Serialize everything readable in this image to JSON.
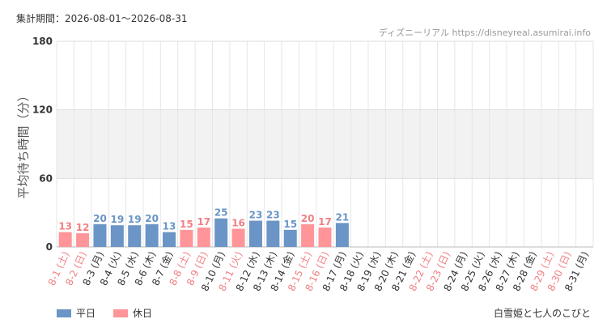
{
  "header": {
    "period": "集計期間：2026-08-01〜2026-08-31",
    "source": "ディズニーリアル https://disneyreal.asumirai.info"
  },
  "footer": {
    "subject": "白雪姫と七人のこびと"
  },
  "colors": {
    "weekday": "#6a95c6",
    "holiday": "#ff9599",
    "holiday_label": "#f08085",
    "weekday_label": "#333333",
    "band": "#f2f2f2"
  },
  "chart_data": {
    "type": "bar",
    "ylabel": "平均待ち時間（分）",
    "ylim": [
      0,
      180
    ],
    "yticks": [
      0,
      60,
      120,
      180
    ],
    "band": [
      60,
      120
    ],
    "grid": true,
    "legend_position": "bottom-left",
    "legend": [
      {
        "key": "weekday",
        "label": "平日"
      },
      {
        "key": "holiday",
        "label": "休日"
      }
    ],
    "categories": [
      "8-1 (土)",
      "8-2 (日)",
      "8-3 (月)",
      "8-4 (火)",
      "8-5 (水)",
      "8-6 (木)",
      "8-7 (金)",
      "8-8 (土)",
      "8-9 (日)",
      "8-10 (月)",
      "8-11 (火)",
      "8-12 (水)",
      "8-13 (木)",
      "8-14 (金)",
      "8-15 (土)",
      "8-16 (日)",
      "8-17 (月)",
      "8-18 (火)",
      "8-19 (水)",
      "8-20 (木)",
      "8-21 (金)",
      "8-22 (土)",
      "8-23 (日)",
      "8-24 (月)",
      "8-25 (火)",
      "8-26 (水)",
      "8-27 (木)",
      "8-28 (金)",
      "8-29 (土)",
      "8-30 (日)",
      "8-31 (月)"
    ],
    "day_type": [
      "holiday",
      "holiday",
      "weekday",
      "weekday",
      "weekday",
      "weekday",
      "weekday",
      "holiday",
      "holiday",
      "weekday",
      "holiday",
      "weekday",
      "weekday",
      "weekday",
      "holiday",
      "holiday",
      "weekday",
      "weekday",
      "weekday",
      "weekday",
      "weekday",
      "holiday",
      "holiday",
      "weekday",
      "weekday",
      "weekday",
      "weekday",
      "weekday",
      "holiday",
      "holiday",
      "weekday"
    ],
    "values": [
      13,
      12,
      20,
      19,
      19,
      20,
      13,
      15,
      17,
      25,
      16,
      23,
      23,
      15,
      20,
      17,
      21,
      null,
      null,
      null,
      null,
      null,
      null,
      null,
      null,
      null,
      null,
      null,
      null,
      null,
      null
    ]
  }
}
